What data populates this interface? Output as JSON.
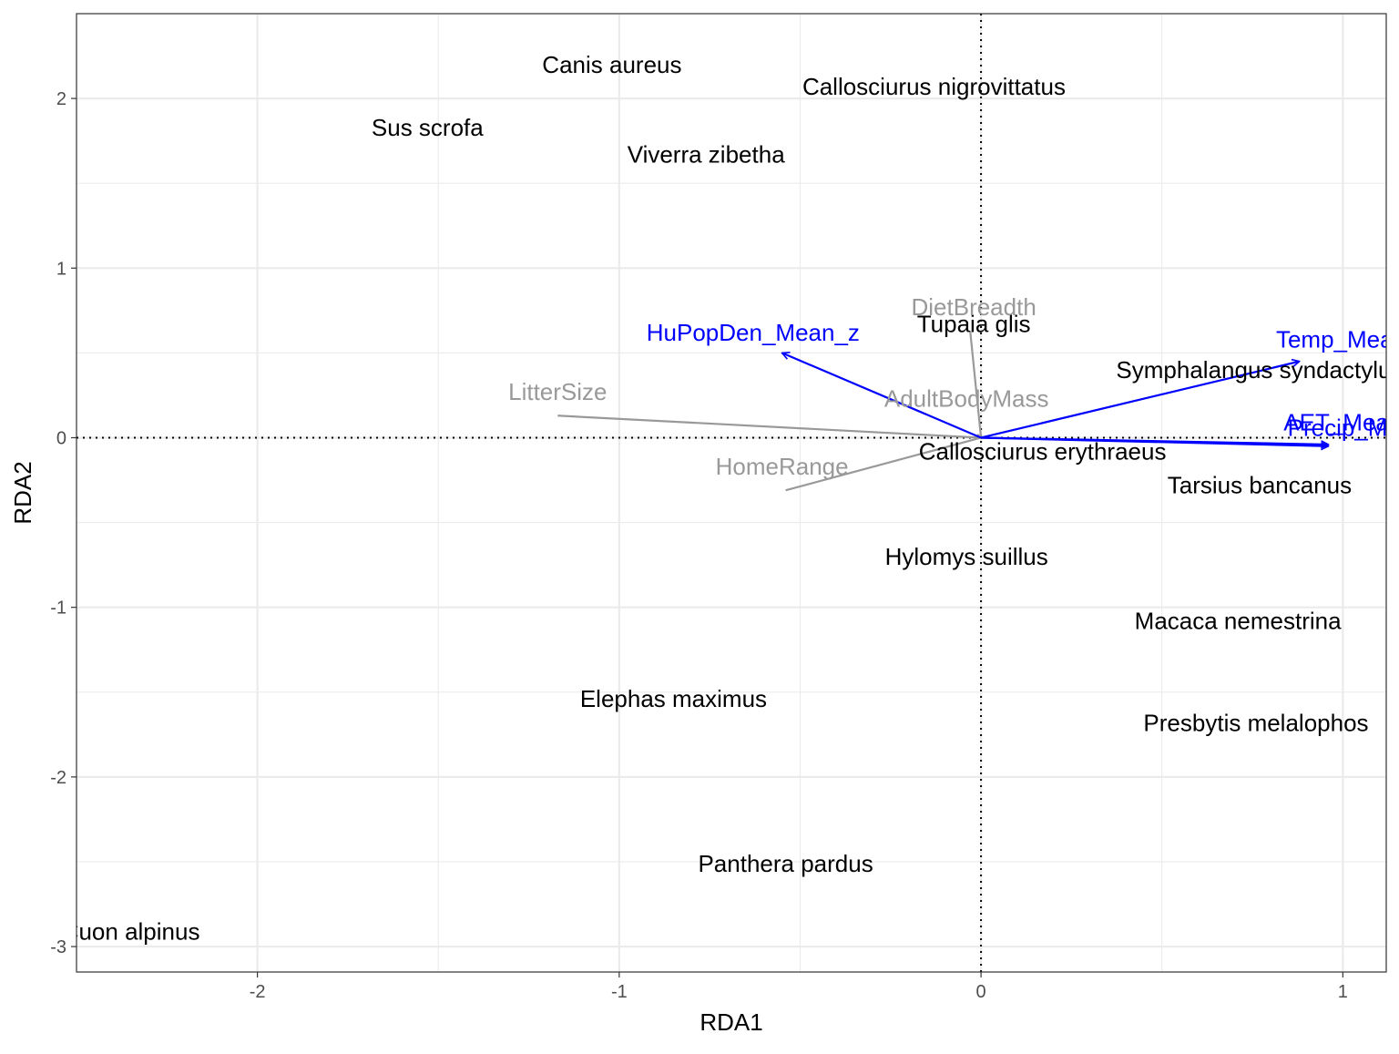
{
  "chart_data": {
    "type": "scatter",
    "xlabel": "RDA1",
    "ylabel": "RDA2",
    "xlim": [
      -2.5,
      1.12
    ],
    "ylim": [
      -3.15,
      2.5
    ],
    "x_ticks": [
      -2,
      -1,
      0,
      1
    ],
    "y_ticks": [
      -3,
      -2,
      -1,
      0,
      1,
      2
    ],
    "x_tick_labels": [
      "-2",
      "-1",
      "0",
      "1"
    ],
    "y_tick_labels": [
      "-3",
      "-2",
      "-1",
      "0",
      "1",
      "2"
    ],
    "grid": true,
    "reference_lines": {
      "x": 0,
      "y": 0,
      "style": "dotted"
    },
    "species": [
      {
        "label": "Canis aureus",
        "x": -1.02,
        "y": 2.2
      },
      {
        "label": "Callosciurus nigrovittatus",
        "x": -0.13,
        "y": 2.07
      },
      {
        "label": "Sus scrofa",
        "x": -1.53,
        "y": 1.83
      },
      {
        "label": "Viverra zibetha",
        "x": -0.76,
        "y": 1.67
      },
      {
        "label": "Tupaia glis",
        "x": -0.02,
        "y": 0.67
      },
      {
        "label": "Symphalangus syndactylus",
        "x": 0.77,
        "y": 0.4
      },
      {
        "label": "Callosciurus erythraeus",
        "x": 0.17,
        "y": -0.08
      },
      {
        "label": "Tarsius bancanus",
        "x": 0.77,
        "y": -0.28
      },
      {
        "label": "Hylomys suillus",
        "x": -0.04,
        "y": -0.7
      },
      {
        "label": "Macaca nemestrina",
        "x": 0.71,
        "y": -1.08
      },
      {
        "label": "Elephas maximus",
        "x": -0.85,
        "y": -1.54
      },
      {
        "label": "Presbytis melalophos",
        "x": 0.76,
        "y": -1.68
      },
      {
        "label": "Panthera pardus",
        "x": -0.54,
        "y": -2.51
      },
      {
        "label": "Cuon alpinus",
        "x": -2.35,
        "y": -2.91
      }
    ],
    "trait_arrows": [
      {
        "name": "DietBreadth",
        "x": -0.03,
        "y": 0.63,
        "label_x": -0.02,
        "label_y": 0.77
      },
      {
        "name": "AdultBodyMass",
        "x": -0.01,
        "y": 0.02,
        "label_x": -0.04,
        "label_y": 0.23
      },
      {
        "name": "LitterSize",
        "x": -1.17,
        "y": 0.13,
        "label_x": -1.17,
        "label_y": 0.27
      },
      {
        "name": "HomeRange",
        "x": -0.54,
        "y": -0.31,
        "label_x": -0.55,
        "label_y": -0.17
      }
    ],
    "env_arrows": [
      {
        "name": "HuPopDen_Mean_z",
        "x": -0.55,
        "y": 0.5,
        "label_x": -0.63,
        "label_y": 0.62
      },
      {
        "name": "Temp_Mean_z",
        "x": 0.88,
        "y": 0.45,
        "label_x": 1.03,
        "label_y": 0.58
      },
      {
        "name": "AET_Mean",
        "x": 0.96,
        "y": -0.04,
        "label_x": 1.0,
        "label_y": 0.09
      },
      {
        "name": "Precip_Mean",
        "x": 0.96,
        "y": -0.05,
        "label_x": 1.04,
        "label_y": 0.06
      }
    ],
    "colors": {
      "species": "#000000",
      "traits": "#999999",
      "env": "#0000ff",
      "grid": "#ebebeb",
      "panel_border": "#333333"
    }
  }
}
